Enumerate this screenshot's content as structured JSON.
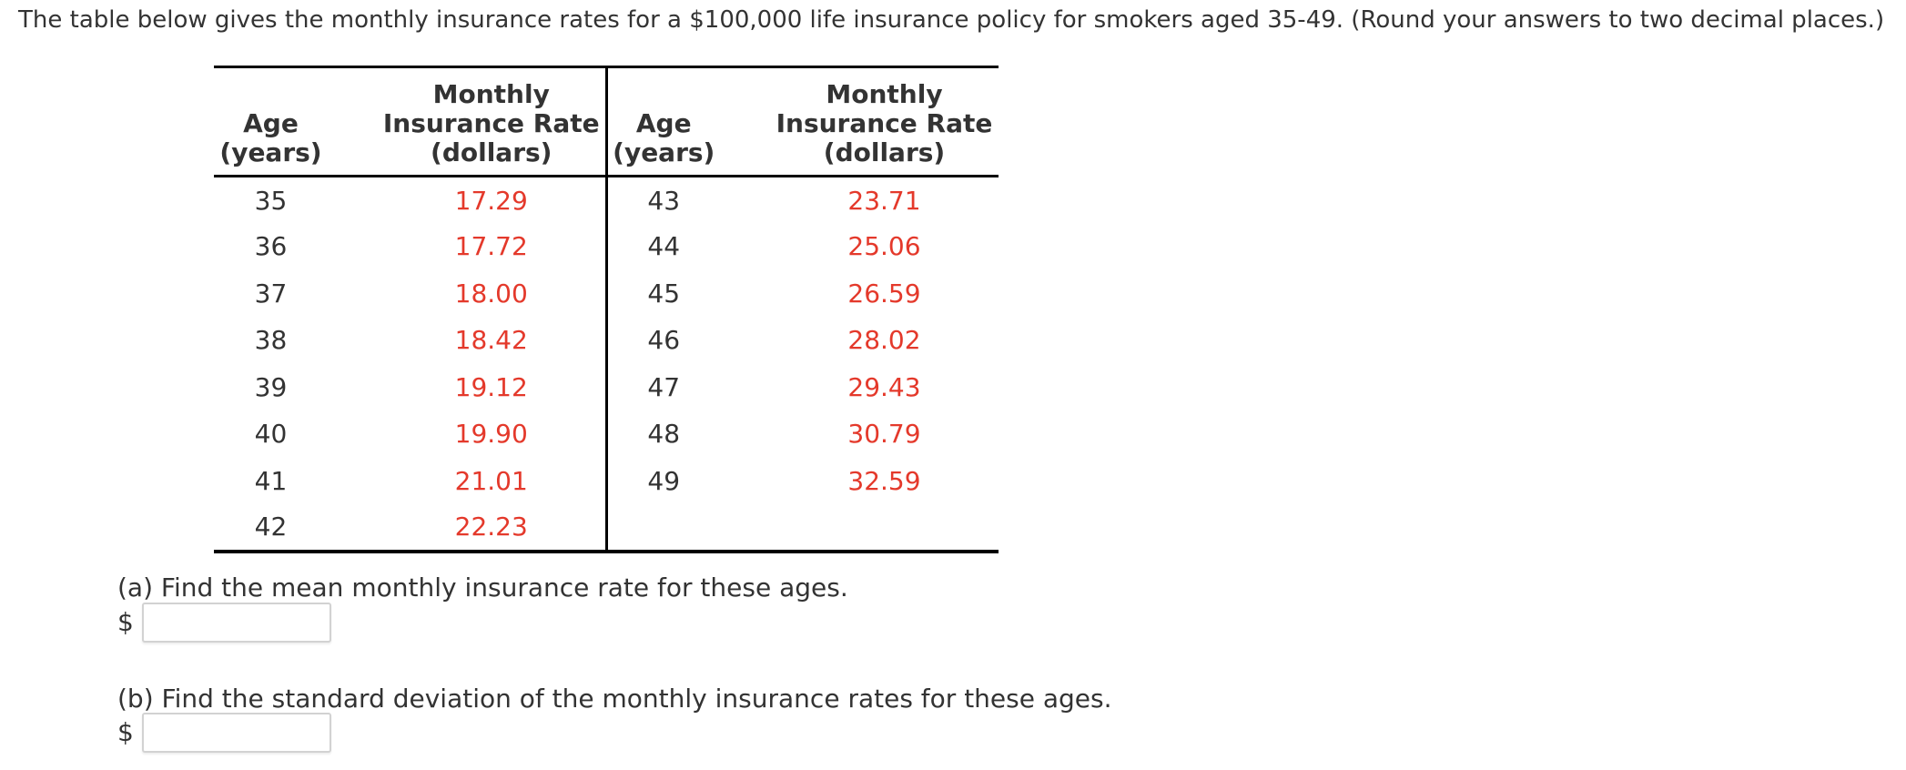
{
  "title": "The table below gives the monthly insurance rates for a $100,000 life insurance policy for smokers aged 35-49. (Round your answers to two decimal places.)",
  "table": {
    "headers": {
      "age": [
        "Age",
        "(years)"
      ],
      "rate": [
        "Monthly",
        "Insurance Rate",
        "(dollars)"
      ]
    },
    "left_rows": [
      {
        "age": "35",
        "rate": "17.29"
      },
      {
        "age": "36",
        "rate": "17.72"
      },
      {
        "age": "37",
        "rate": "18.00"
      },
      {
        "age": "38",
        "rate": "18.42"
      },
      {
        "age": "39",
        "rate": "19.12"
      },
      {
        "age": "40",
        "rate": "19.90"
      },
      {
        "age": "41",
        "rate": "21.01"
      },
      {
        "age": "42",
        "rate": "22.23"
      }
    ],
    "right_rows": [
      {
        "age": "43",
        "rate": "23.71"
      },
      {
        "age": "44",
        "rate": "25.06"
      },
      {
        "age": "45",
        "rate": "26.59"
      },
      {
        "age": "46",
        "rate": "28.02"
      },
      {
        "age": "47",
        "rate": "29.43"
      },
      {
        "age": "48",
        "rate": "30.79"
      },
      {
        "age": "49",
        "rate": "32.59"
      }
    ]
  },
  "questions": {
    "a": {
      "label": "(a) Find the mean monthly insurance rate for these ages.",
      "currency": "$",
      "input_value": ""
    },
    "b": {
      "label": "(b) Find the standard deviation of the monthly insurance rates for these ages.",
      "currency": "$",
      "input_value": ""
    }
  },
  "colors": {
    "rate_text": "#e4392b",
    "body_text": "#333333",
    "table_border": "#000000"
  }
}
